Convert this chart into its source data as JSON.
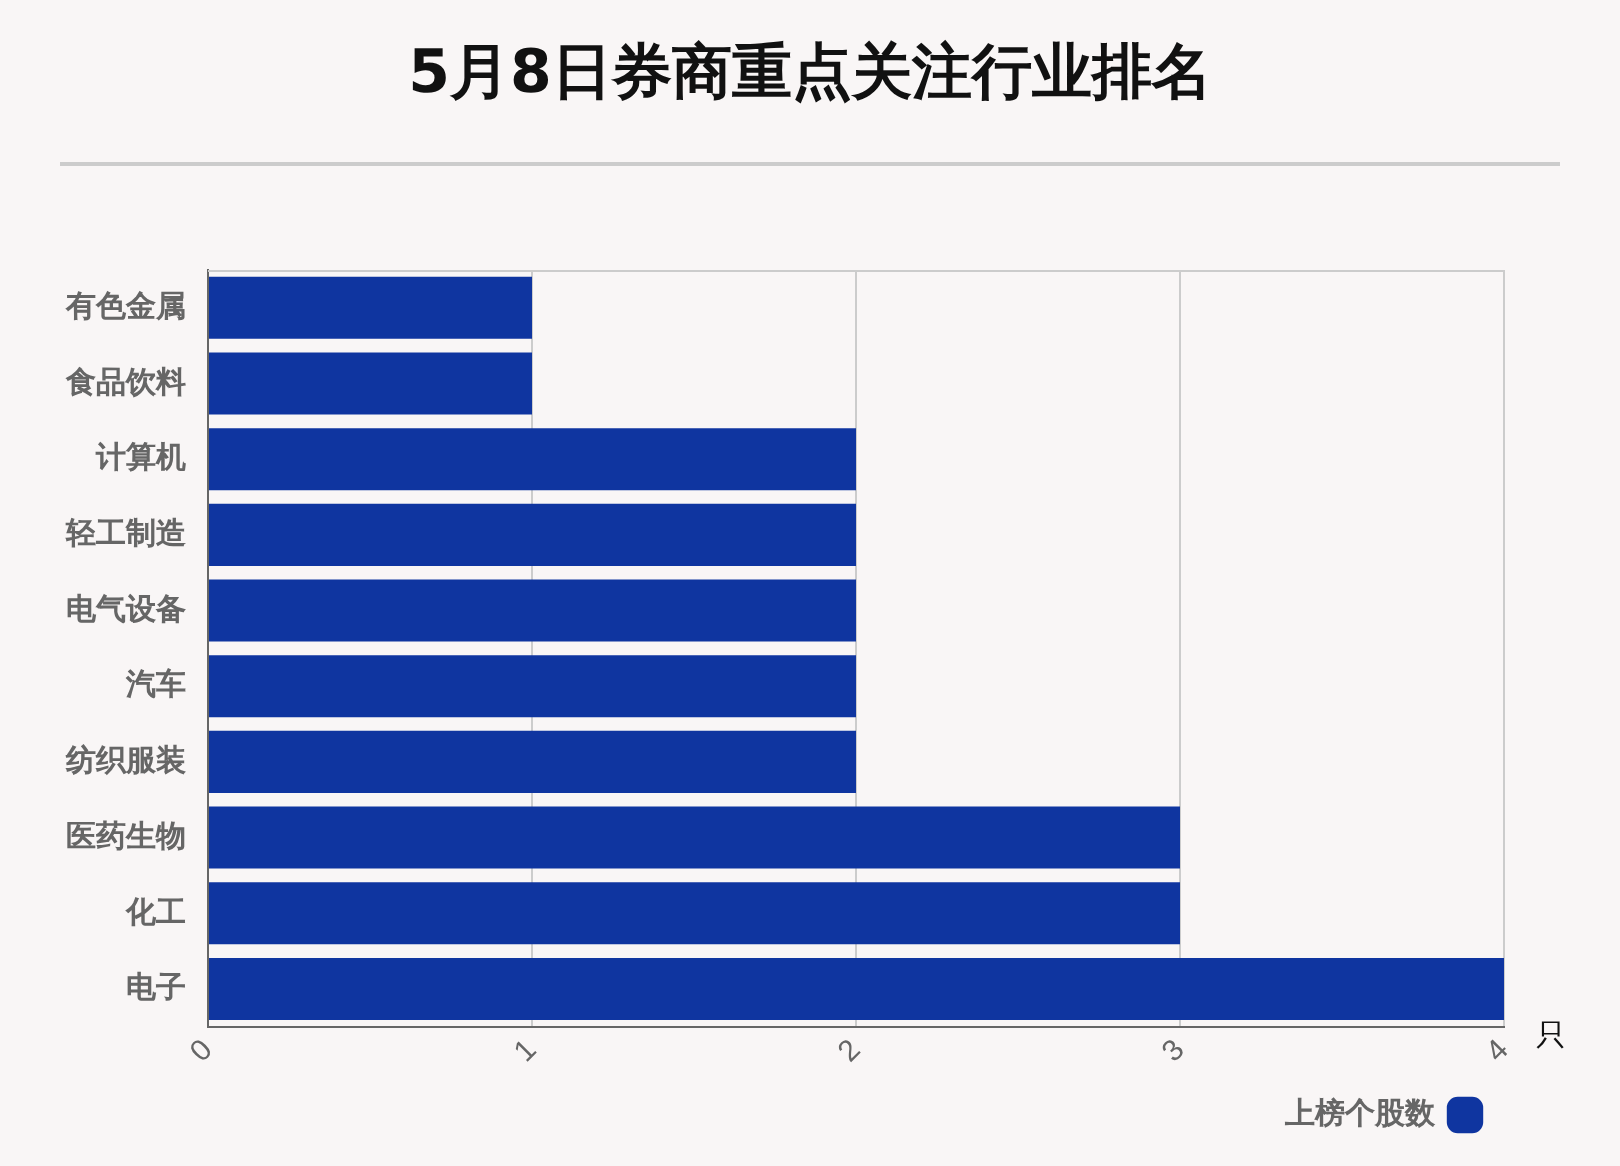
{
  "chart_data": {
    "type": "bar",
    "orientation": "horizontal",
    "title": "5月8日券商重点关注行业排名",
    "xlabel": "只",
    "categories": [
      "有色金属",
      "食品饮料",
      "计算机",
      "轻工制造",
      "电气设备",
      "汽车",
      "纺织服装",
      "医药生物",
      "化工",
      "电子"
    ],
    "series": [
      {
        "name": "上榜个股数",
        "color": "#0f35a0",
        "values": [
          1,
          1,
          2,
          2,
          2,
          2,
          2,
          3,
          3,
          4
        ]
      }
    ],
    "xlim": [
      0,
      4
    ],
    "xticks": [
      0,
      1,
      2,
      3,
      4
    ],
    "grid": "x",
    "legend": "bottom right"
  }
}
